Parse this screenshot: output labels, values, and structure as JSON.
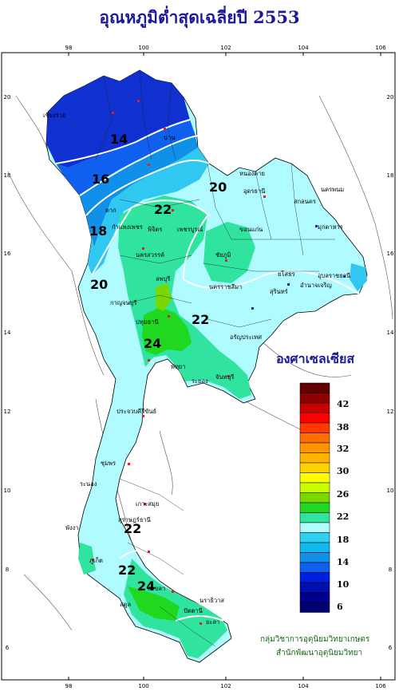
{
  "title": "อุณหภูมิต่ำสุดเฉลี่ยปี  2553",
  "unit_label": "องศาเซลเซียส",
  "credit_line1": "กลุ่มวิชาการอุตุนิยมวิทยาเกษตร",
  "credit_line2": "สำนักพัฒนาอุตุนิยมวิทยา",
  "axes": {
    "lon_ticks": [
      "98",
      "100",
      "102",
      "104",
      "106"
    ],
    "lat_ticks": [
      "20",
      "18",
      "16",
      "14",
      "12",
      "10",
      "8",
      "6"
    ]
  },
  "isotherm_labels": [
    "14",
    "16",
    "18",
    "20",
    "20",
    "22",
    "22",
    "24",
    "22",
    "24",
    "22"
  ],
  "province_labels": [
    "เชียงราย",
    "น่าน",
    "หนองคาย",
    "อุดรธานี",
    "นครพนม",
    "สกลนคร",
    "มุกดาหาร",
    "ตาก",
    "กำแพงเพชร",
    "พิจิตร",
    "เพชรบูรณ์",
    "ขอนแก่น",
    "ชัยภูมิ",
    "อุบลราชธานี",
    "นครสวรรค์",
    "ยโสธร",
    "ลพบุรี",
    "นครราชสีมา",
    "สุรินทร์",
    "อำนาจเจริญ",
    "กาญจนบุรี",
    "ปทุมธานี",
    "อรัญประเทศ",
    "พัทยา",
    "จันทบุรี",
    "ระยอง",
    "ประจวบคีรีขันธ์",
    "ชุมพร",
    "ระนอง",
    "เกาะสมุย",
    "สุราษฎร์ธานี",
    "พังงา",
    "ภูเก็ต",
    "นราธิวาส",
    "ปัตตานี",
    "สงขลา",
    "สตูล",
    "ยะลา"
  ],
  "legend": {
    "labels": [
      "42",
      "38",
      "32",
      "30",
      "26",
      "22",
      "18",
      "14",
      "10",
      "6"
    ],
    "colors": [
      "#600000",
      "#900000",
      "#c80000",
      "#ff0000",
      "#ff3a00",
      "#ff6e00",
      "#ff9600",
      "#ffb400",
      "#ffd200",
      "#ffff00",
      "#c8ff00",
      "#7ad800",
      "#20d820",
      "#30e4a0",
      "#b0fbff",
      "#30d0f0",
      "#10b8f0",
      "#1090e8",
      "#1060f0",
      "#0020e0",
      "#0010b0",
      "#000090",
      "#000070"
    ]
  },
  "colors": {
    "title": "#1a1a9a",
    "frame": "#000000",
    "credit": "#1a6a1a"
  }
}
